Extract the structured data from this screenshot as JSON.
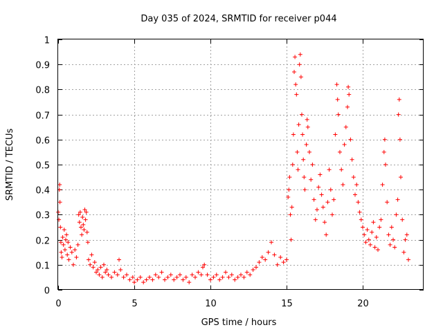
{
  "chart_data": {
    "type": "scatter",
    "title": "Day 035 of 2024, SRMTID for receiver p044",
    "xlabel": "GPS time / hours",
    "ylabel": "SRMTID / TECUs",
    "xlim": [
      0,
      24
    ],
    "ylim": [
      0,
      1
    ],
    "xticks": [
      0,
      5,
      10,
      15,
      20
    ],
    "xtick_labels": [
      "0",
      "5",
      "10",
      "15",
      "20"
    ],
    "yticks": [
      0,
      0.1,
      0.2,
      0.3,
      0.4,
      0.5,
      0.6,
      0.7,
      0.8,
      0.9,
      1
    ],
    "ytick_labels": [
      "0",
      "0.1",
      "0.2",
      "0.3",
      "0.4",
      "0.5",
      "0.6",
      "0.7",
      "0.8",
      "0.9",
      "1"
    ],
    "grid": true,
    "marker": "+",
    "color": "#ff0000",
    "series": [
      {
        "name": "SRMTID",
        "points": [
          [
            0.0,
            0.31
          ],
          [
            0.05,
            0.28
          ],
          [
            0.08,
            0.4
          ],
          [
            0.1,
            0.42
          ],
          [
            0.12,
            0.35
          ],
          [
            0.15,
            0.25
          ],
          [
            0.18,
            0.19
          ],
          [
            0.2,
            0.15
          ],
          [
            0.25,
            0.13
          ],
          [
            0.3,
            0.21
          ],
          [
            0.35,
            0.18
          ],
          [
            0.4,
            0.24
          ],
          [
            0.45,
            0.16
          ],
          [
            0.5,
            0.2
          ],
          [
            0.55,
            0.22
          ],
          [
            0.6,
            0.14
          ],
          [
            0.65,
            0.19
          ],
          [
            0.7,
            0.12
          ],
          [
            0.8,
            0.17
          ],
          [
            0.9,
            0.15
          ],
          [
            1.0,
            0.1
          ],
          [
            1.1,
            0.16
          ],
          [
            1.2,
            0.13
          ],
          [
            1.3,
            0.18
          ],
          [
            1.35,
            0.3
          ],
          [
            1.4,
            0.27
          ],
          [
            1.45,
            0.31
          ],
          [
            1.5,
            0.25
          ],
          [
            1.55,
            0.22
          ],
          [
            1.6,
            0.29
          ],
          [
            1.65,
            0.26
          ],
          [
            1.7,
            0.24
          ],
          [
            1.75,
            0.32
          ],
          [
            1.8,
            0.28
          ],
          [
            1.85,
            0.31
          ],
          [
            1.9,
            0.23
          ],
          [
            1.95,
            0.19
          ],
          [
            2.0,
            0.12
          ],
          [
            2.1,
            0.1
          ],
          [
            2.2,
            0.14
          ],
          [
            2.3,
            0.09
          ],
          [
            2.4,
            0.11
          ],
          [
            2.5,
            0.07
          ],
          [
            2.6,
            0.08
          ],
          [
            2.7,
            0.06
          ],
          [
            2.8,
            0.09
          ],
          [
            2.9,
            0.05
          ],
          [
            3.0,
            0.1
          ],
          [
            3.1,
            0.07
          ],
          [
            3.2,
            0.08
          ],
          [
            3.3,
            0.06
          ],
          [
            3.5,
            0.05
          ],
          [
            3.7,
            0.07
          ],
          [
            3.9,
            0.06
          ],
          [
            4.0,
            0.12
          ],
          [
            4.1,
            0.08
          ],
          [
            4.3,
            0.05
          ],
          [
            4.5,
            0.06
          ],
          [
            4.7,
            0.04
          ],
          [
            4.9,
            0.05
          ],
          [
            5.0,
            0.03
          ],
          [
            5.2,
            0.04
          ],
          [
            5.4,
            0.05
          ],
          [
            5.6,
            0.03
          ],
          [
            5.8,
            0.04
          ],
          [
            6.0,
            0.05
          ],
          [
            6.2,
            0.04
          ],
          [
            6.4,
            0.06
          ],
          [
            6.6,
            0.05
          ],
          [
            6.8,
            0.07
          ],
          [
            7.0,
            0.04
          ],
          [
            7.2,
            0.05
          ],
          [
            7.4,
            0.06
          ],
          [
            7.6,
            0.04
          ],
          [
            7.8,
            0.05
          ],
          [
            8.0,
            0.06
          ],
          [
            8.2,
            0.04
          ],
          [
            8.4,
            0.05
          ],
          [
            8.6,
            0.03
          ],
          [
            8.8,
            0.06
          ],
          [
            9.0,
            0.05
          ],
          [
            9.2,
            0.07
          ],
          [
            9.4,
            0.06
          ],
          [
            9.5,
            0.09
          ],
          [
            9.6,
            0.1
          ],
          [
            9.8,
            0.06
          ],
          [
            10.0,
            0.04
          ],
          [
            10.2,
            0.05
          ],
          [
            10.4,
            0.06
          ],
          [
            10.6,
            0.04
          ],
          [
            10.8,
            0.05
          ],
          [
            11.0,
            0.07
          ],
          [
            11.2,
            0.05
          ],
          [
            11.4,
            0.06
          ],
          [
            11.6,
            0.04
          ],
          [
            11.8,
            0.05
          ],
          [
            12.0,
            0.06
          ],
          [
            12.2,
            0.05
          ],
          [
            12.4,
            0.07
          ],
          [
            12.6,
            0.06
          ],
          [
            12.8,
            0.08
          ],
          [
            13.0,
            0.09
          ],
          [
            13.2,
            0.11
          ],
          [
            13.4,
            0.13
          ],
          [
            13.6,
            0.12
          ],
          [
            13.8,
            0.15
          ],
          [
            14.0,
            0.19
          ],
          [
            14.2,
            0.14
          ],
          [
            14.4,
            0.1
          ],
          [
            14.6,
            0.13
          ],
          [
            14.8,
            0.11
          ],
          [
            15.0,
            0.12
          ],
          [
            15.1,
            0.37
          ],
          [
            15.15,
            0.4
          ],
          [
            15.2,
            0.45
          ],
          [
            15.25,
            0.3
          ],
          [
            15.3,
            0.2
          ],
          [
            15.35,
            0.33
          ],
          [
            15.4,
            0.5
          ],
          [
            15.45,
            0.62
          ],
          [
            15.5,
            0.87
          ],
          [
            15.55,
            0.93
          ],
          [
            15.6,
            0.82
          ],
          [
            15.65,
            0.78
          ],
          [
            15.7,
            0.55
          ],
          [
            15.75,
            0.48
          ],
          [
            15.8,
            0.66
          ],
          [
            15.85,
            0.9
          ],
          [
            15.9,
            0.94
          ],
          [
            15.95,
            0.85
          ],
          [
            16.0,
            0.7
          ],
          [
            16.05,
            0.62
          ],
          [
            16.1,
            0.52
          ],
          [
            16.15,
            0.45
          ],
          [
            16.2,
            0.4
          ],
          [
            16.3,
            0.58
          ],
          [
            16.35,
            0.68
          ],
          [
            16.4,
            0.65
          ],
          [
            16.5,
            0.55
          ],
          [
            16.6,
            0.44
          ],
          [
            16.7,
            0.5
          ],
          [
            16.8,
            0.36
          ],
          [
            16.9,
            0.28
          ],
          [
            17.0,
            0.32
          ],
          [
            17.1,
            0.41
          ],
          [
            17.2,
            0.46
          ],
          [
            17.3,
            0.38
          ],
          [
            17.4,
            0.33
          ],
          [
            17.5,
            0.27
          ],
          [
            17.6,
            0.22
          ],
          [
            17.7,
            0.35
          ],
          [
            17.8,
            0.48
          ],
          [
            17.9,
            0.4
          ],
          [
            18.0,
            0.3
          ],
          [
            18.1,
            0.36
          ],
          [
            18.2,
            0.62
          ],
          [
            18.3,
            0.82
          ],
          [
            18.35,
            0.76
          ],
          [
            18.4,
            0.7
          ],
          [
            18.5,
            0.55
          ],
          [
            18.6,
            0.48
          ],
          [
            18.7,
            0.42
          ],
          [
            18.8,
            0.58
          ],
          [
            18.9,
            0.65
          ],
          [
            19.0,
            0.73
          ],
          [
            19.05,
            0.81
          ],
          [
            19.1,
            0.78
          ],
          [
            19.2,
            0.6
          ],
          [
            19.3,
            0.52
          ],
          [
            19.4,
            0.45
          ],
          [
            19.5,
            0.38
          ],
          [
            19.6,
            0.42
          ],
          [
            19.7,
            0.35
          ],
          [
            19.8,
            0.31
          ],
          [
            19.9,
            0.28
          ],
          [
            20.0,
            0.25
          ],
          [
            20.1,
            0.22
          ],
          [
            20.2,
            0.19
          ],
          [
            20.3,
            0.24
          ],
          [
            20.4,
            0.2
          ],
          [
            20.5,
            0.18
          ],
          [
            20.6,
            0.23
          ],
          [
            20.7,
            0.27
          ],
          [
            20.8,
            0.17
          ],
          [
            20.9,
            0.21
          ],
          [
            21.0,
            0.16
          ],
          [
            21.1,
            0.25
          ],
          [
            21.2,
            0.28
          ],
          [
            21.3,
            0.42
          ],
          [
            21.4,
            0.55
          ],
          [
            21.45,
            0.6
          ],
          [
            21.5,
            0.5
          ],
          [
            21.6,
            0.35
          ],
          [
            21.7,
            0.22
          ],
          [
            21.8,
            0.18
          ],
          [
            21.9,
            0.25
          ],
          [
            22.0,
            0.2
          ],
          [
            22.1,
            0.17
          ],
          [
            22.2,
            0.3
          ],
          [
            22.3,
            0.36
          ],
          [
            22.35,
            0.7
          ],
          [
            22.4,
            0.76
          ],
          [
            22.45,
            0.6
          ],
          [
            22.5,
            0.45
          ],
          [
            22.6,
            0.28
          ],
          [
            22.7,
            0.15
          ],
          [
            22.8,
            0.2
          ],
          [
            22.9,
            0.22
          ],
          [
            23.0,
            0.12
          ]
        ]
      }
    ]
  }
}
